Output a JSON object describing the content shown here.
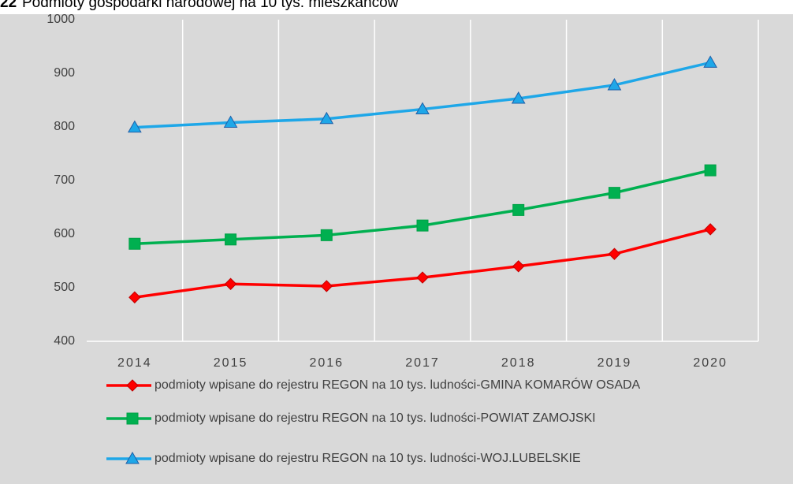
{
  "chart_data": {
    "type": "line",
    "title_number": "22",
    "title": "Podmioty gospodarki narodowej  na 10 tys. mieszkańców",
    "categories": [
      "2014",
      "2015",
      "2016",
      "2017",
      "2018",
      "2019",
      "2020"
    ],
    "series": [
      {
        "name": "podmioty wpisane do rejestru REGON na 10 tys. ludności-GMINA KOMARÓW OSADA",
        "color": "#ff0000",
        "marker": "diamond",
        "values": [
          482,
          507,
          503,
          519,
          540,
          563,
          609
        ]
      },
      {
        "name": "podmioty wpisane do rejestru REGON na 10 tys. ludności-POWIAT ZAMOJSKI",
        "color": "#00b050",
        "marker": "square",
        "values": [
          582,
          590,
          598,
          616,
          645,
          677,
          719
        ]
      },
      {
        "name": "podmioty wpisane do rejestru REGON na 10 tys. ludności-WOJ.LUBELSKIE",
        "color": "#1ea7e8",
        "marker": "triangle",
        "values": [
          799,
          808,
          815,
          833,
          853,
          878,
          920
        ]
      }
    ],
    "ylim": [
      400,
      1000
    ],
    "yticks": [
      400,
      500,
      600,
      700,
      800,
      900,
      1000
    ],
    "grid": "vertical",
    "legend": "bottom"
  }
}
